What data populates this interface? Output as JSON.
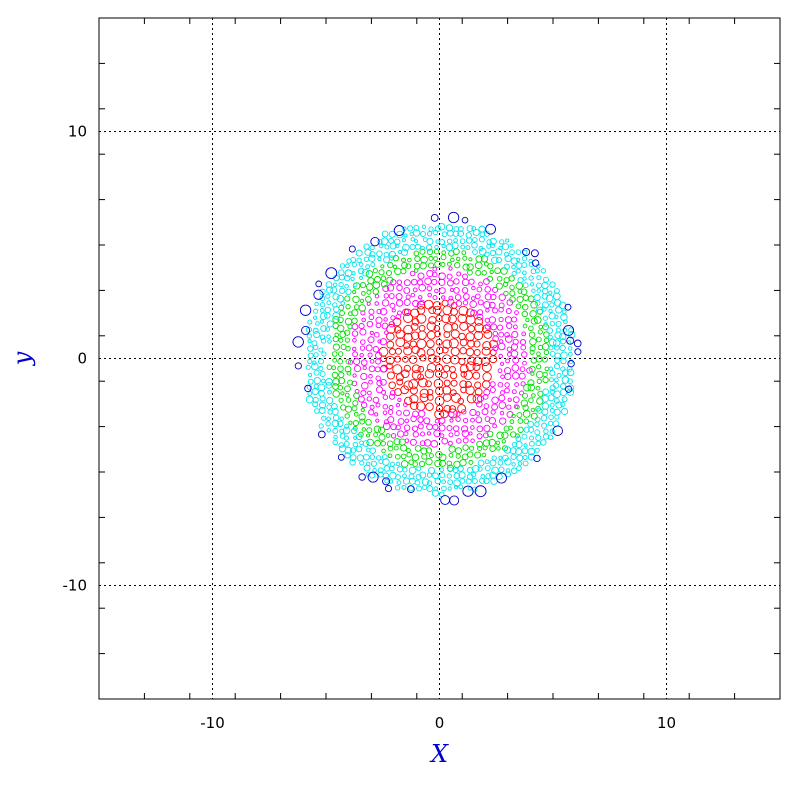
{
  "chart_data": {
    "type": "scatter",
    "title": "",
    "xlabel": "X",
    "ylabel": "y",
    "xlim": [
      -15,
      15
    ],
    "ylim": [
      -15,
      15
    ],
    "grid": true,
    "legend": "none",
    "x_ticks": [
      -10,
      0,
      10
    ],
    "y_ticks": [
      -10,
      0,
      10
    ],
    "x_tick_labels": [
      "-10",
      "0",
      "10"
    ],
    "y_tick_labels": [
      "-10",
      "0",
      "10"
    ],
    "axis_title_color": "#0000cc",
    "marker": "hollow-circle",
    "series": [
      {
        "color": "#ff0000",
        "rings": [
          [
            0,
            2.5,
            0.35
          ]
        ]
      },
      {
        "color": "#ff00ff",
        "rings": [
          [
            2.5,
            4.0,
            0.32
          ]
        ]
      },
      {
        "color": "#00dd00",
        "rings": [
          [
            4.0,
            4.9,
            0.3
          ]
        ]
      },
      {
        "color": "#00e5ee",
        "rings": [
          [
            4.9,
            6.0,
            0.28
          ]
        ]
      },
      {
        "color": "#0000cc",
        "rings": [
          [
            5.8,
            6.3,
            0.5
          ]
        ]
      }
    ]
  }
}
